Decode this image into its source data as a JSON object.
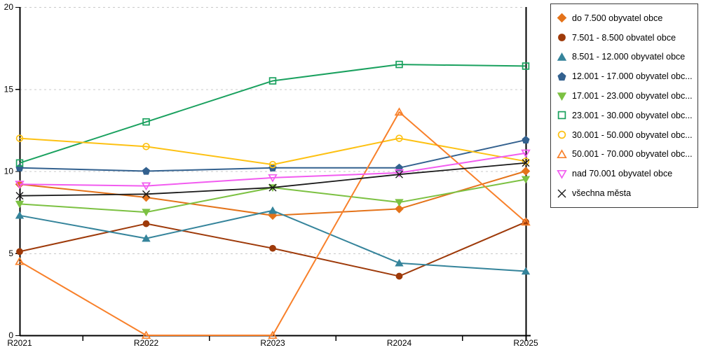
{
  "chart_data": {
    "type": "line",
    "title": "",
    "xlabel": "",
    "ylabel": "",
    "categories": [
      "R2021",
      "R2022",
      "R2023",
      "R2024",
      "R2025"
    ],
    "y_axis": {
      "min": 0,
      "max": 20,
      "ticks": [
        0,
        5,
        10,
        15,
        20
      ]
    },
    "grid": "horizontal-dashed",
    "legend_position": "right",
    "series": [
      {
        "name": "do 7.500 obyvatel obce",
        "color": "#e4731a",
        "marker": "diamond",
        "fill": "filled",
        "values": [
          9.2,
          8.4,
          7.3,
          7.7,
          10.0
        ]
      },
      {
        "name": "7.501 - 8.500 obvatel obce",
        "color": "#9e3a0a",
        "marker": "circle",
        "fill": "filled",
        "values": [
          5.1,
          6.8,
          5.3,
          3.6,
          6.9
        ]
      },
      {
        "name": "8.501 - 12.000 obyvatel obce",
        "color": "#35849b",
        "marker": "triangle-up",
        "fill": "filled",
        "values": [
          7.3,
          5.9,
          7.6,
          4.4,
          3.9
        ]
      },
      {
        "name": "12.001 - 17.000 obyvatel obc...",
        "color": "#33618f",
        "marker": "pentagon",
        "fill": "filled",
        "values": [
          10.2,
          10.0,
          10.2,
          10.2,
          11.9
        ]
      },
      {
        "name": "17.001 - 23.000 obyvatel obc...",
        "color": "#7cc142",
        "marker": "triangle-down",
        "fill": "filled",
        "values": [
          8.0,
          7.5,
          9.0,
          8.1,
          9.5
        ]
      },
      {
        "name": "23.001 - 30.000 obyvatel obc...",
        "color": "#1aa15f",
        "marker": "square",
        "fill": "open",
        "values": [
          10.5,
          13.0,
          15.5,
          16.5,
          16.4
        ]
      },
      {
        "name": "30.001 - 50.000 obyvatel obc...",
        "color": "#fdc113",
        "marker": "circle",
        "fill": "open",
        "values": [
          12.0,
          11.5,
          10.4,
          12.0,
          10.6
        ]
      },
      {
        "name": "50.001 - 70.000 obyvatel obc...",
        "color": "#f8802a",
        "marker": "triangle-up",
        "fill": "open",
        "values": [
          4.5,
          0,
          0,
          13.6,
          6.9
        ]
      },
      {
        "name": "nad 70.001 obyvatel obce",
        "color": "#f25cf0",
        "marker": "triangle-down",
        "fill": "open",
        "values": [
          9.2,
          9.1,
          9.6,
          9.9,
          11.1
        ]
      },
      {
        "name": "všechna města",
        "color": "#1a1a1a",
        "marker": "x",
        "fill": "line",
        "values": [
          8.5,
          8.6,
          9.0,
          9.8,
          10.5
        ]
      }
    ],
    "colors": {
      "grid": "#c9c9c9",
      "axis": "#000000",
      "background": "#ffffff"
    }
  }
}
